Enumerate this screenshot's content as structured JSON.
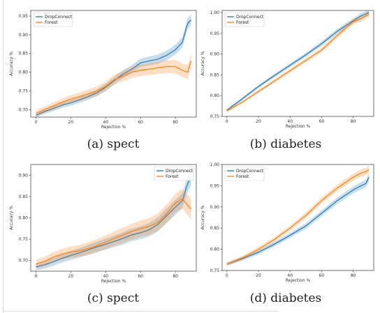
{
  "captions": [
    "(a) spect",
    "(b) diabetes",
    "(c) spect",
    "(d) diabetes"
  ],
  "colors": {
    "dropconnect": "#1f77b4",
    "forest": "#ff7f0e"
  },
  "chart_data": [
    {
      "type": "line",
      "xlabel": "Rejection %",
      "ylabel": "Accuracy %",
      "xlim": [
        -3,
        92
      ],
      "ylim": [
        0.68,
        0.965
      ],
      "xticks": [
        0,
        20,
        40,
        60,
        80
      ],
      "yticks": [
        0.7,
        0.75,
        0.8,
        0.85,
        0.9,
        0.95
      ],
      "yticklabels": [
        "0.70",
        "0.75",
        "0.80",
        "0.85",
        "0.90",
        "0.95"
      ],
      "legend": "top-left",
      "grid": false,
      "x": [
        0,
        5,
        10,
        15,
        20,
        25,
        30,
        35,
        40,
        45,
        50,
        55,
        60,
        65,
        70,
        75,
        80,
        84,
        87,
        89
      ],
      "series": [
        {
          "name": "DropConnect",
          "color": "#1f77b4",
          "band": 0.006,
          "values": [
            0.685,
            0.695,
            0.703,
            0.712,
            0.718,
            0.726,
            0.735,
            0.745,
            0.76,
            0.778,
            0.795,
            0.808,
            0.825,
            0.83,
            0.835,
            0.845,
            0.86,
            0.88,
            0.93,
            0.94
          ]
        },
        {
          "name": "Forest",
          "color": "#ff7f0e",
          "band": 0.008,
          "values": [
            0.69,
            0.7,
            0.71,
            0.72,
            0.728,
            0.735,
            0.742,
            0.75,
            0.762,
            0.78,
            0.79,
            0.8,
            0.805,
            0.808,
            0.812,
            0.815,
            0.815,
            0.805,
            0.8,
            0.83
          ]
        }
      ]
    },
    {
      "type": "line",
      "xlabel": "Rejection %",
      "ylabel": "Accuracy %",
      "xlim": [
        -3,
        93
      ],
      "ylim": [
        0.75,
        1.005
      ],
      "xticks": [
        0,
        20,
        40,
        60,
        80
      ],
      "yticks": [
        0.75,
        0.8,
        0.85,
        0.9,
        0.95,
        1.0
      ],
      "yticklabels": [
        "0.75",
        "0.80",
        "0.85",
        "0.90",
        "0.95",
        "1.00"
      ],
      "legend": "top-left",
      "grid": false,
      "x": [
        0,
        10,
        20,
        30,
        40,
        50,
        60,
        70,
        80,
        85,
        90
      ],
      "series": [
        {
          "name": "DropConnect",
          "color": "#1f77b4",
          "band": 0.003,
          "values": [
            0.765,
            0.793,
            0.822,
            0.848,
            0.873,
            0.898,
            0.925,
            0.955,
            0.98,
            0.992,
            1.0
          ]
        },
        {
          "name": "Forest",
          "color": "#ff7f0e",
          "band": 0.003,
          "values": [
            0.763,
            0.785,
            0.81,
            0.835,
            0.86,
            0.885,
            0.91,
            0.945,
            0.978,
            0.985,
            0.997
          ]
        }
      ]
    },
    {
      "type": "line",
      "xlabel": "Rejection %",
      "ylabel": "Accuracy %",
      "xlim": [
        -3,
        92
      ],
      "ylim": [
        0.675,
        0.925
      ],
      "xticks": [
        0,
        20,
        40,
        60,
        80
      ],
      "yticks": [
        0.7,
        0.75,
        0.8,
        0.85,
        0.9
      ],
      "yticklabels": [
        "0.70",
        "0.75",
        "0.80",
        "0.85",
        "0.90"
      ],
      "legend": "top-right",
      "grid": false,
      "x": [
        0,
        5,
        10,
        15,
        20,
        25,
        30,
        35,
        40,
        45,
        50,
        55,
        60,
        65,
        70,
        75,
        80,
        84,
        87,
        89
      ],
      "series": [
        {
          "name": "DropConnect",
          "color": "#1f77b4",
          "band": 0.008,
          "values": [
            0.685,
            0.69,
            0.697,
            0.705,
            0.712,
            0.718,
            0.725,
            0.732,
            0.738,
            0.745,
            0.752,
            0.76,
            0.765,
            0.772,
            0.785,
            0.805,
            0.825,
            0.84,
            0.88,
            0.895
          ]
        },
        {
          "name": "Forest",
          "color": "#ff7f0e",
          "band": 0.01,
          "values": [
            0.692,
            0.698,
            0.708,
            0.715,
            0.72,
            0.723,
            0.728,
            0.735,
            0.743,
            0.752,
            0.76,
            0.768,
            0.775,
            0.78,
            0.79,
            0.81,
            0.835,
            0.845,
            0.83,
            0.82
          ]
        }
      ]
    },
    {
      "type": "line",
      "xlabel": "Rejection %",
      "ylabel": "Accuracy %",
      "xlim": [
        -3,
        93
      ],
      "ylim": [
        0.75,
        1.0
      ],
      "xticks": [
        0,
        20,
        40,
        60,
        80
      ],
      "yticks": [
        0.75,
        0.8,
        0.85,
        0.9,
        0.95,
        1.0
      ],
      "yticklabels": [
        "0.75",
        "0.80",
        "0.85",
        "0.90",
        "0.95",
        "1.00"
      ],
      "legend": "top-left",
      "grid": false,
      "x": [
        0,
        10,
        20,
        30,
        40,
        50,
        60,
        70,
        80,
        85,
        88,
        90
      ],
      "series": [
        {
          "name": "DropConnect",
          "color": "#1f77b4",
          "band": 0.004,
          "values": [
            0.765,
            0.778,
            0.793,
            0.812,
            0.833,
            0.855,
            0.885,
            0.915,
            0.94,
            0.95,
            0.955,
            0.97
          ]
        },
        {
          "name": "Forest",
          "color": "#ff7f0e",
          "band": 0.004,
          "values": [
            0.765,
            0.78,
            0.8,
            0.823,
            0.85,
            0.88,
            0.915,
            0.945,
            0.97,
            0.98,
            0.983,
            0.988
          ]
        }
      ]
    }
  ]
}
